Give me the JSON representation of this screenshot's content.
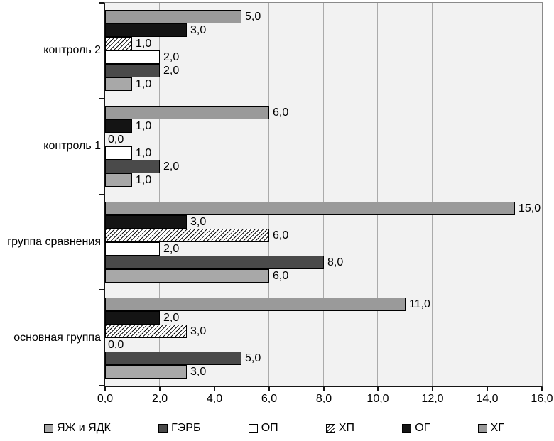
{
  "chart_data": {
    "type": "bar",
    "orientation": "horizontal",
    "title": "",
    "xlabel": "",
    "ylabel": "",
    "categories": [
      "контроль 2",
      "контроль 1",
      "группа сравнения",
      "основная группа"
    ],
    "series": [
      {
        "name": "ЯЖ и ЯДК",
        "color": "#a8a8a8",
        "pattern": "solid",
        "values": [
          1.0,
          1.0,
          6.0,
          3.0
        ]
      },
      {
        "name": "ГЭРБ",
        "color": "#4a4a4a",
        "pattern": "solid",
        "values": [
          2.0,
          2.0,
          8.0,
          5.0
        ]
      },
      {
        "name": "ОП",
        "color": "#ffffff",
        "pattern": "solid",
        "values": [
          2.0,
          1.0,
          2.0,
          0.0
        ]
      },
      {
        "name": "ХП",
        "color": "#ffffff",
        "pattern": "diagonal-hatch",
        "values": [
          1.0,
          0.0,
          6.0,
          3.0
        ]
      },
      {
        "name": "ОГ",
        "color": "#141414",
        "pattern": "solid",
        "values": [
          3.0,
          1.0,
          3.0,
          2.0
        ]
      },
      {
        "name": "ХГ",
        "color": "#9a9a9a",
        "pattern": "solid",
        "values": [
          5.0,
          6.0,
          15.0,
          11.0
        ]
      }
    ],
    "bar_order_within_group_top_to_bottom": [
      "ХГ",
      "ОГ",
      "ХП",
      "ОП",
      "ГЭРБ",
      "ЯЖ и ЯДК"
    ],
    "x_axis": {
      "min": 0,
      "max": 16,
      "tick_step": 2,
      "tick_labels": [
        "0,0",
        "2,0",
        "4,0",
        "6,0",
        "8,0",
        "10,0",
        "12,0",
        "14,0",
        "16,0"
      ]
    },
    "value_labels_shown": true,
    "value_label_format": "one decimal, comma separator",
    "legend_position": "bottom",
    "grid": true,
    "colors": {
      "plot_background": "#f2f2f2",
      "gridline": "#ababab",
      "axis": "#161616",
      "bar_border": "#000000",
      "text": "#000000"
    }
  }
}
